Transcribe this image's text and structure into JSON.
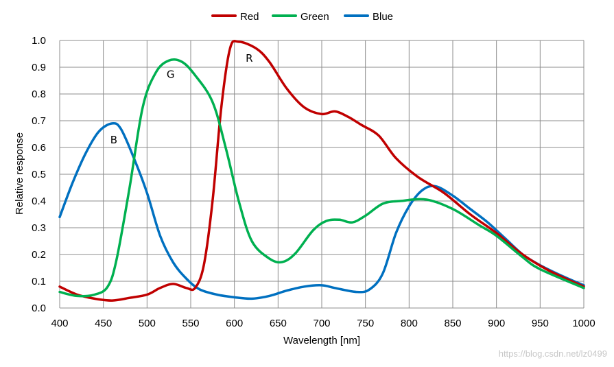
{
  "chart_data": {
    "type": "line",
    "title": "",
    "xlabel": "Wavelength [nm]",
    "ylabel": "Relative response",
    "xlim": [
      400,
      1000
    ],
    "ylim": [
      0,
      1.0
    ],
    "xticks": [
      400,
      450,
      500,
      550,
      600,
      650,
      700,
      750,
      800,
      850,
      900,
      950,
      1000
    ],
    "yticks": [
      0.0,
      0.1,
      0.2,
      0.3,
      0.4,
      0.5,
      0.6,
      0.7,
      0.8,
      0.9,
      1.0
    ],
    "ytick_labels": [
      "0.0",
      "0.1",
      "0.2",
      "0.3",
      "0.4",
      "0.5",
      "0.6",
      "0.7",
      "0.8",
      "0.9",
      "1.0"
    ],
    "grid": true,
    "legend_position": "top-center",
    "series": [
      {
        "name": "Red",
        "color": "#c00000",
        "points": [
          [
            400,
            0.08
          ],
          [
            420,
            0.05
          ],
          [
            440,
            0.035
          ],
          [
            460,
            0.028
          ],
          [
            480,
            0.038
          ],
          [
            500,
            0.05
          ],
          [
            515,
            0.075
          ],
          [
            530,
            0.09
          ],
          [
            545,
            0.075
          ],
          [
            555,
            0.075
          ],
          [
            565,
            0.16
          ],
          [
            575,
            0.4
          ],
          [
            585,
            0.75
          ],
          [
            595,
            0.97
          ],
          [
            605,
            0.995
          ],
          [
            625,
            0.97
          ],
          [
            640,
            0.92
          ],
          [
            660,
            0.82
          ],
          [
            680,
            0.75
          ],
          [
            700,
            0.725
          ],
          [
            715,
            0.735
          ],
          [
            730,
            0.715
          ],
          [
            745,
            0.685
          ],
          [
            765,
            0.645
          ],
          [
            785,
            0.56
          ],
          [
            810,
            0.49
          ],
          [
            840,
            0.43
          ],
          [
            870,
            0.35
          ],
          [
            900,
            0.28
          ],
          [
            930,
            0.2
          ],
          [
            960,
            0.14
          ],
          [
            1000,
            0.08
          ]
        ]
      },
      {
        "name": "Green",
        "color": "#00b050",
        "points": [
          [
            400,
            0.06
          ],
          [
            420,
            0.045
          ],
          [
            440,
            0.05
          ],
          [
            455,
            0.08
          ],
          [
            465,
            0.18
          ],
          [
            480,
            0.45
          ],
          [
            495,
            0.75
          ],
          [
            510,
            0.88
          ],
          [
            525,
            0.925
          ],
          [
            540,
            0.92
          ],
          [
            555,
            0.87
          ],
          [
            575,
            0.77
          ],
          [
            590,
            0.6
          ],
          [
            605,
            0.4
          ],
          [
            620,
            0.25
          ],
          [
            640,
            0.185
          ],
          [
            655,
            0.172
          ],
          [
            670,
            0.205
          ],
          [
            690,
            0.29
          ],
          [
            705,
            0.325
          ],
          [
            720,
            0.33
          ],
          [
            735,
            0.32
          ],
          [
            750,
            0.345
          ],
          [
            770,
            0.39
          ],
          [
            790,
            0.4
          ],
          [
            820,
            0.405
          ],
          [
            850,
            0.37
          ],
          [
            880,
            0.31
          ],
          [
            900,
            0.27
          ],
          [
            930,
            0.19
          ],
          [
            950,
            0.145
          ],
          [
            1000,
            0.075
          ]
        ]
      },
      {
        "name": "Blue",
        "color": "#0070c0",
        "points": [
          [
            400,
            0.34
          ],
          [
            415,
            0.47
          ],
          [
            430,
            0.58
          ],
          [
            445,
            0.66
          ],
          [
            460,
            0.69
          ],
          [
            470,
            0.67
          ],
          [
            485,
            0.56
          ],
          [
            500,
            0.43
          ],
          [
            515,
            0.27
          ],
          [
            530,
            0.17
          ],
          [
            545,
            0.11
          ],
          [
            560,
            0.07
          ],
          [
            580,
            0.05
          ],
          [
            600,
            0.04
          ],
          [
            620,
            0.035
          ],
          [
            640,
            0.045
          ],
          [
            660,
            0.065
          ],
          [
            680,
            0.08
          ],
          [
            700,
            0.085
          ],
          [
            715,
            0.075
          ],
          [
            740,
            0.06
          ],
          [
            755,
            0.07
          ],
          [
            770,
            0.13
          ],
          [
            785,
            0.28
          ],
          [
            800,
            0.38
          ],
          [
            815,
            0.44
          ],
          [
            830,
            0.455
          ],
          [
            850,
            0.42
          ],
          [
            870,
            0.37
          ],
          [
            890,
            0.32
          ],
          [
            910,
            0.26
          ],
          [
            930,
            0.2
          ],
          [
            950,
            0.16
          ],
          [
            975,
            0.12
          ],
          [
            1000,
            0.085
          ]
        ]
      }
    ],
    "annotations": [
      {
        "text": "B",
        "x": 462,
        "y": 0.615
      },
      {
        "text": "G",
        "x": 527,
        "y": 0.86
      },
      {
        "text": "R",
        "x": 617,
        "y": 0.92
      }
    ]
  },
  "watermark": "https://blog.csdn.net/lz0499"
}
